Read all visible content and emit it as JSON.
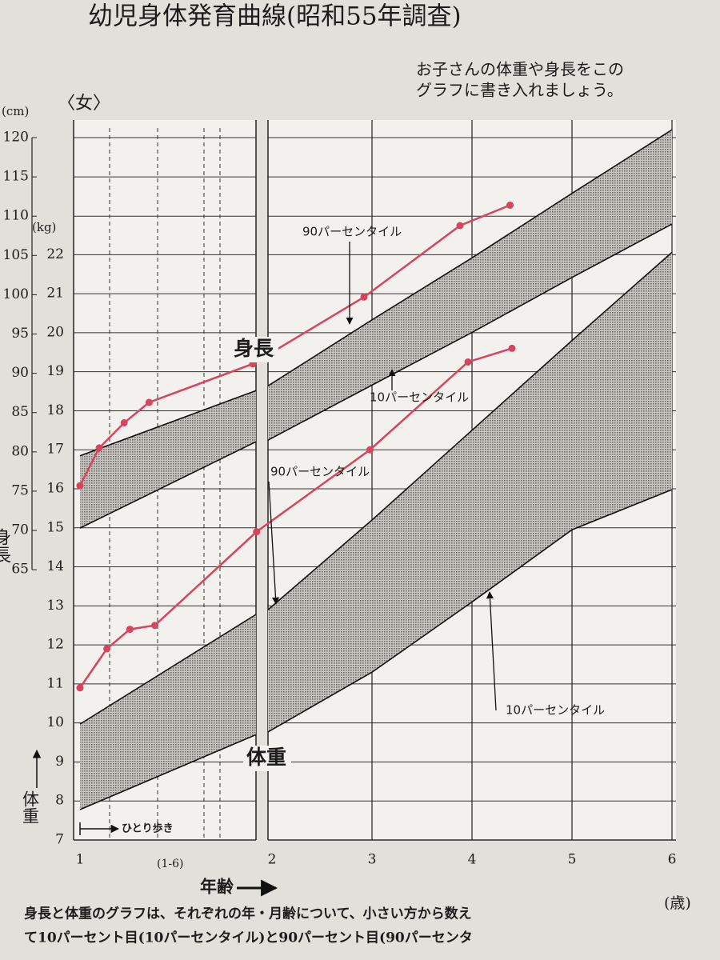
{
  "chart_data": {
    "type": "line",
    "title": "幼児身体発育曲線(昭和55年調査)",
    "subtitle": [
      "お子さんの体重や身長をこの",
      "グラフに書き入れましょう。"
    ],
    "gender_label": "〈女〉",
    "xlabel": "年齢",
    "xunit": "(歳)",
    "xlim": [
      1,
      6
    ],
    "xticks": [
      1,
      2,
      3,
      4,
      5,
      6
    ],
    "x_minor_label": "(1-6)",
    "walking_label": "ひとり歩き",
    "ylabel": "身長",
    "yunit": "(cm)",
    "ylim": [
      30.6,
      120
    ],
    "yticks": [
      65,
      70,
      75,
      80,
      85,
      90,
      95,
      100,
      105,
      110,
      115,
      120
    ],
    "y2label": "体重",
    "y2unit": "(kg)",
    "y2lim": [
      7,
      25
    ],
    "y2ticks": [
      7,
      8,
      9,
      10,
      11,
      12,
      13,
      14,
      15,
      16,
      17,
      18,
      19,
      20,
      21,
      22
    ],
    "bands": [
      {
        "axis": "y",
        "x": [
          1,
          1.917
        ],
        "upper": [
          79.5,
          87.8
        ],
        "lower": [
          70.3,
          81.3
        ]
      },
      {
        "axis": "y",
        "x": [
          1.96,
          3,
          4,
          5,
          6
        ],
        "upper": [
          88.4,
          96.8,
          104.7,
          112.9,
          121
        ],
        "lower": [
          81.5,
          88.5,
          95.2,
          102.2,
          109
        ]
      },
      {
        "axis": "y2",
        "x": [
          1,
          1.917
        ],
        "upper": [
          9.97,
          12.78
        ],
        "lower": [
          7.78,
          9.7
        ]
      },
      {
        "axis": "y2",
        "x": [
          1.96,
          3,
          4,
          5,
          6
        ],
        "upper": [
          12.9,
          15.2,
          17.5,
          19.8,
          22.06
        ],
        "lower": [
          9.77,
          11.3,
          13.1,
          14.95,
          15.98
        ]
      }
    ],
    "series": [
      {
        "axis": "y",
        "color": "#d8435e",
        "x": [
          1.0,
          1.1,
          1.23,
          1.36,
          1.9,
          2.92,
          3.88,
          4.38
        ],
        "values": [
          75.7,
          80.5,
          83.7,
          86.3,
          91.2,
          99.7,
          108.8,
          111.4
        ]
      },
      {
        "axis": "y2",
        "color": "#d8435e",
        "x": [
          1.0,
          1.14,
          1.26,
          1.39,
          1.92,
          2.98,
          3.96,
          4.4
        ],
        "values": [
          10.9,
          11.9,
          12.4,
          12.5,
          14.9,
          17.0,
          19.25,
          19.6
        ]
      }
    ],
    "annotations": [
      {
        "text": "90パーセンタイル"
      },
      {
        "text": "10パーセンタイル"
      },
      {
        "text": "90パーセンタイル"
      },
      {
        "text": "10パーセンタイル"
      },
      {
        "text": "身長"
      },
      {
        "text": "体重"
      }
    ],
    "footer": [
      "身長と体重のグラフは、それぞれの年・月齢について、小さい方から数え",
      "て10パーセント目(10パーセンタイル)と90パーセント目(90パーセンタ"
    ]
  }
}
